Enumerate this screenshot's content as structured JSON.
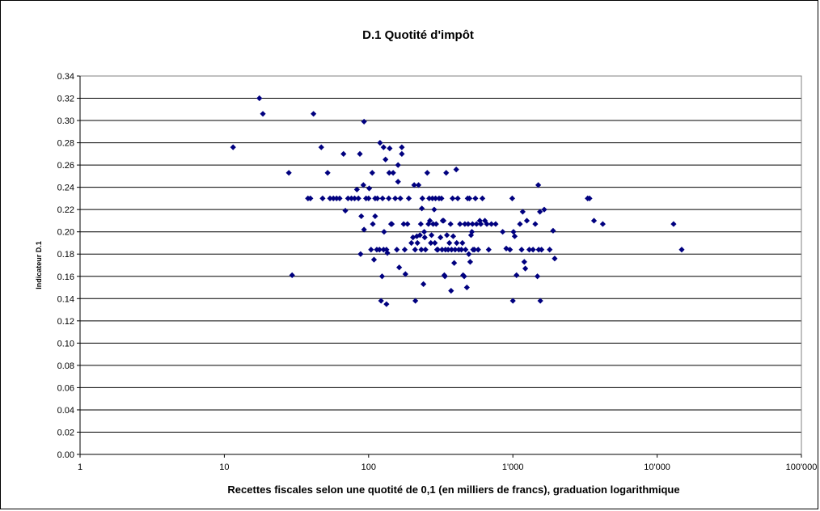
{
  "chart_data": {
    "type": "scatter",
    "title": "D.1 Quotité d'impôt",
    "xlabel": "Recettes fiscales selon une quotité de 0,1 (en milliers de francs), graduation logarithmique",
    "ylabel": "Indicateur D.1",
    "x_scale": "log",
    "xlim": [
      1,
      100000
    ],
    "ylim": [
      0,
      0.34
    ],
    "x_ticks": [
      1,
      10,
      100,
      1000,
      10000,
      100000
    ],
    "x_tick_labels": [
      "1",
      "10",
      "100",
      "1'000",
      "10'000",
      "100'000"
    ],
    "y_ticks": [
      0,
      0.02,
      0.04,
      0.06,
      0.08,
      0.1,
      0.12,
      0.14,
      0.16,
      0.18,
      0.2,
      0.22,
      0.24,
      0.26,
      0.28,
      0.3,
      0.32,
      0.34
    ],
    "y_tick_labels": [
      "0.00",
      "0.02",
      "0.04",
      "0.06",
      "0.08",
      "0.10",
      "0.12",
      "0.14",
      "0.16",
      "0.18",
      "0.20",
      "0.22",
      "0.24",
      "0.26",
      "0.28",
      "0.30",
      "0.32",
      "0.34"
    ],
    "grid": "horizontal",
    "legend": "none",
    "colors": {
      "marker": "#00007F",
      "grid": "#000000",
      "background": "#ffffff"
    },
    "points": [
      [
        11.5,
        0.276
      ],
      [
        17.5,
        0.32
      ],
      [
        18.5,
        0.306
      ],
      [
        28,
        0.253
      ],
      [
        29.5,
        0.161
      ],
      [
        38,
        0.23
      ],
      [
        39.5,
        0.23
      ],
      [
        41.5,
        0.306
      ],
      [
        47,
        0.276
      ],
      [
        48,
        0.23
      ],
      [
        52,
        0.253
      ],
      [
        54,
        0.23
      ],
      [
        57,
        0.23
      ],
      [
        60,
        0.23
      ],
      [
        63,
        0.23
      ],
      [
        67,
        0.27
      ],
      [
        69,
        0.219
      ],
      [
        72,
        0.23
      ],
      [
        76,
        0.23
      ],
      [
        80,
        0.23
      ],
      [
        83,
        0.238
      ],
      [
        85,
        0.23
      ],
      [
        87,
        0.27
      ],
      [
        88,
        0.18
      ],
      [
        89,
        0.214
      ],
      [
        92,
        0.242
      ],
      [
        93,
        0.299
      ],
      [
        93,
        0.202
      ],
      [
        96,
        0.23
      ],
      [
        100,
        0.23
      ],
      [
        101,
        0.239
      ],
      [
        104,
        0.184
      ],
      [
        106,
        0.253
      ],
      [
        107,
        0.207
      ],
      [
        109,
        0.175
      ],
      [
        111,
        0.214
      ],
      [
        111,
        0.23
      ],
      [
        114,
        0.184
      ],
      [
        115,
        0.23
      ],
      [
        119,
        0.184
      ],
      [
        120,
        0.28
      ],
      [
        122,
        0.138
      ],
      [
        124,
        0.16
      ],
      [
        125,
        0.23
      ],
      [
        127,
        0.184
      ],
      [
        127,
        0.276
      ],
      [
        128,
        0.2
      ],
      [
        131,
        0.265
      ],
      [
        133,
        0.135
      ],
      [
        133,
        0.184
      ],
      [
        135,
        0.181
      ],
      [
        138,
        0.23
      ],
      [
        139,
        0.253
      ],
      [
        140,
        0.275
      ],
      [
        143,
        0.207
      ],
      [
        145,
        0.207
      ],
      [
        148,
        0.253
      ],
      [
        153,
        0.23
      ],
      [
        157,
        0.184
      ],
      [
        160,
        0.26
      ],
      [
        160,
        0.245
      ],
      [
        163,
        0.168
      ],
      [
        166,
        0.23
      ],
      [
        170,
        0.276
      ],
      [
        170,
        0.27
      ],
      [
        175,
        0.207
      ],
      [
        178,
        0.184
      ],
      [
        180,
        0.162
      ],
      [
        186,
        0.207
      ],
      [
        190,
        0.23
      ],
      [
        198,
        0.19
      ],
      [
        203,
        0.195
      ],
      [
        207,
        0.242
      ],
      [
        210,
        0.184
      ],
      [
        211,
        0.138
      ],
      [
        216,
        0.196
      ],
      [
        218,
        0.19
      ],
      [
        222,
        0.242
      ],
      [
        227,
        0.197
      ],
      [
        230,
        0.207
      ],
      [
        232,
        0.184
      ],
      [
        234,
        0.221
      ],
      [
        236,
        0.23
      ],
      [
        240,
        0.153
      ],
      [
        243,
        0.2
      ],
      [
        245,
        0.195
      ],
      [
        248,
        0.184
      ],
      [
        255,
        0.253
      ],
      [
        260,
        0.207
      ],
      [
        263,
        0.23
      ],
      [
        266,
        0.21
      ],
      [
        270,
        0.19
      ],
      [
        273,
        0.197
      ],
      [
        277,
        0.23
      ],
      [
        280,
        0.207
      ],
      [
        285,
        0.22
      ],
      [
        288,
        0.19
      ],
      [
        291,
        0.23
      ],
      [
        294,
        0.207
      ],
      [
        298,
        0.184
      ],
      [
        302,
        0.184
      ],
      [
        308,
        0.23
      ],
      [
        315,
        0.195
      ],
      [
        320,
        0.23
      ],
      [
        323,
        0.184
      ],
      [
        326,
        0.21
      ],
      [
        331,
        0.21
      ],
      [
        335,
        0.161
      ],
      [
        338,
        0.16
      ],
      [
        341,
        0.184
      ],
      [
        345,
        0.253
      ],
      [
        349,
        0.197
      ],
      [
        356,
        0.184
      ],
      [
        363,
        0.19
      ],
      [
        370,
        0.207
      ],
      [
        373,
        0.147
      ],
      [
        376,
        0.184
      ],
      [
        382,
        0.23
      ],
      [
        386,
        0.196
      ],
      [
        392,
        0.172
      ],
      [
        398,
        0.184
      ],
      [
        405,
        0.256
      ],
      [
        408,
        0.19
      ],
      [
        415,
        0.23
      ],
      [
        422,
        0.184
      ],
      [
        430,
        0.207
      ],
      [
        440,
        0.184
      ],
      [
        447,
        0.19
      ],
      [
        452,
        0.161
      ],
      [
        460,
        0.16
      ],
      [
        465,
        0.207
      ],
      [
        470,
        0.184
      ],
      [
        480,
        0.15
      ],
      [
        486,
        0.23
      ],
      [
        490,
        0.207
      ],
      [
        495,
        0.18
      ],
      [
        500,
        0.23
      ],
      [
        506,
        0.173
      ],
      [
        513,
        0.197
      ],
      [
        520,
        0.2
      ],
      [
        525,
        0.207
      ],
      [
        530,
        0.184
      ],
      [
        541,
        0.184
      ],
      [
        550,
        0.23
      ],
      [
        560,
        0.207
      ],
      [
        575,
        0.184
      ],
      [
        590,
        0.21
      ],
      [
        600,
        0.207
      ],
      [
        615,
        0.23
      ],
      [
        640,
        0.21
      ],
      [
        660,
        0.207
      ],
      [
        680,
        0.184
      ],
      [
        710,
        0.207
      ],
      [
        760,
        0.207
      ],
      [
        850,
        0.2
      ],
      [
        900,
        0.185
      ],
      [
        955,
        0.184
      ],
      [
        990,
        0.23
      ],
      [
        1000,
        0.138
      ],
      [
        1010,
        0.2
      ],
      [
        1030,
        0.196
      ],
      [
        1060,
        0.161
      ],
      [
        1120,
        0.207
      ],
      [
        1150,
        0.184
      ],
      [
        1170,
        0.218
      ],
      [
        1200,
        0.173
      ],
      [
        1220,
        0.167
      ],
      [
        1250,
        0.21
      ],
      [
        1300,
        0.184
      ],
      [
        1380,
        0.184
      ],
      [
        1430,
        0.207
      ],
      [
        1480,
        0.16
      ],
      [
        1500,
        0.242
      ],
      [
        1510,
        0.184
      ],
      [
        1540,
        0.218
      ],
      [
        1550,
        0.138
      ],
      [
        1580,
        0.184
      ],
      [
        1650,
        0.22
      ],
      [
        1800,
        0.184
      ],
      [
        1900,
        0.201
      ],
      [
        1950,
        0.176
      ],
      [
        3300,
        0.23
      ],
      [
        3400,
        0.23
      ],
      [
        3650,
        0.21
      ],
      [
        4200,
        0.207
      ],
      [
        13000,
        0.207
      ],
      [
        14800,
        0.184
      ]
    ]
  }
}
